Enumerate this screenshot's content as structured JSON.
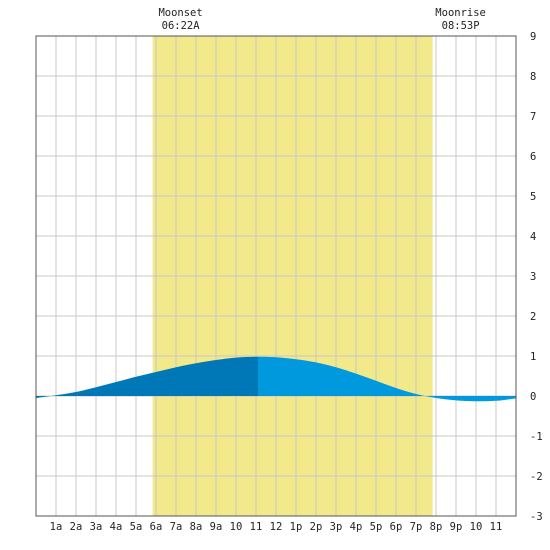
{
  "chart_data": {
    "type": "area",
    "title": "",
    "xlabel": "",
    "ylabel": "",
    "ylim": [
      -3,
      9
    ],
    "xlim": [
      0,
      24
    ],
    "y_ticks": [
      "-3",
      "-2",
      "-1",
      "0",
      "1",
      "2",
      "3",
      "4",
      "5",
      "6",
      "7",
      "8",
      "9"
    ],
    "x_ticks": [
      "1a",
      "2a",
      "3a",
      "4a",
      "5a",
      "6a",
      "7a",
      "8a",
      "9a",
      "10",
      "11",
      "12",
      "1p",
      "2p",
      "3p",
      "4p",
      "5p",
      "6p",
      "7p",
      "8p",
      "9p",
      "10",
      "11"
    ],
    "grid": true,
    "moon_band": {
      "start_hour": 5.83,
      "end_hour": 19.83
    },
    "annotations": [
      {
        "name": "moonset",
        "label": "Moonset",
        "time": "06:22A"
      },
      {
        "name": "moonrise",
        "label": "Moonrise",
        "time": "08:53P"
      }
    ],
    "high_tide_hour": 11.1,
    "series": [
      {
        "x": [
          0,
          1,
          2,
          3,
          4,
          5,
          6,
          7,
          8,
          9,
          10,
          11,
          12,
          13,
          14,
          15,
          16,
          17,
          18,
          19,
          20,
          21,
          22,
          23,
          24
        ],
        "y": [
          -0.05,
          0.02,
          0.1,
          0.22,
          0.35,
          0.48,
          0.6,
          0.72,
          0.82,
          0.9,
          0.96,
          0.98,
          0.97,
          0.92,
          0.84,
          0.72,
          0.56,
          0.38,
          0.2,
          0.05,
          -0.05,
          -0.11,
          -0.13,
          -0.12,
          -0.06
        ]
      }
    ],
    "colors": {
      "moon_band": "#f2e98a",
      "tide_dark": "#0077b6",
      "tide_light": "#0099dd",
      "grid": "#c8c8c8",
      "frame": "#555555"
    }
  }
}
